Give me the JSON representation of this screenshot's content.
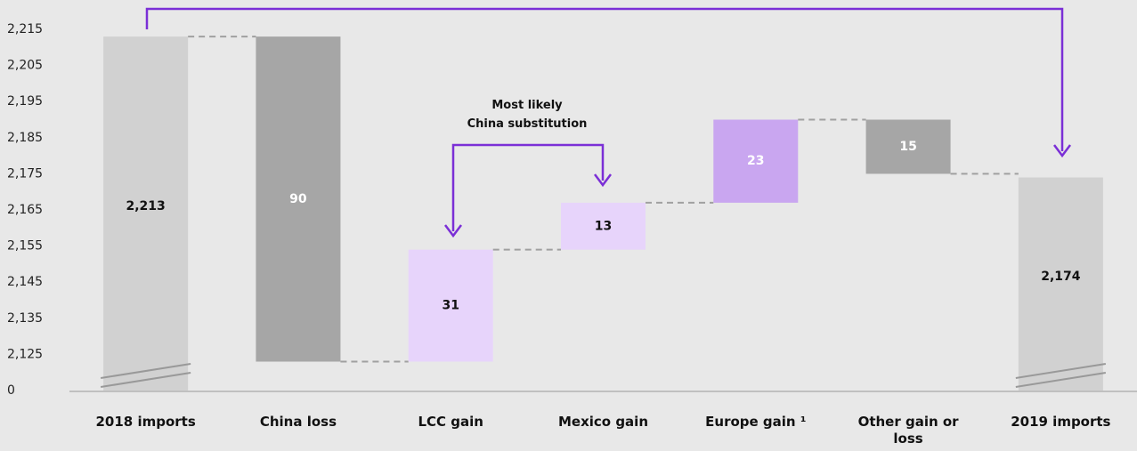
{
  "chart_data": {
    "type": "waterfall",
    "categories": [
      "2018 imports",
      "China loss",
      "LCC gain",
      "Mexico gain",
      "Europe gain ¹",
      "Other gain or loss",
      "2019 imports"
    ],
    "values": [
      2213,
      -90,
      31,
      13,
      23,
      -15,
      2174
    ],
    "value_labels": [
      "2,213",
      "90",
      "31",
      "13",
      "23",
      "15",
      "2,174"
    ],
    "colors": [
      "#d1d1d1",
      "#a6a6a6",
      "#e7d4fb",
      "#e7d4fb",
      "#c9a6f0",
      "#a6a6a6",
      "#d1d1d1"
    ],
    "label_colors": [
      "#111111",
      "#ffffff",
      "#111111",
      "#111111",
      "#ffffff",
      "#ffffff",
      "#111111"
    ],
    "annotation": [
      "Most likely",
      "China substitution"
    ],
    "ylim": [
      2115,
      2215
    ],
    "yticks": [
      0,
      {
        "value": 2125,
        "label": "2,125"
      },
      {
        "value": 2135,
        "label": "2,135"
      },
      {
        "value": 2145,
        "label": "2,145"
      },
      {
        "value": 2155,
        "label": "2,155"
      },
      {
        "value": 2165,
        "label": "2,165"
      },
      {
        "value": 2175,
        "label": "2,175"
      },
      {
        "value": 2185,
        "label": "2,185"
      },
      {
        "value": 2195,
        "label": "2,195"
      },
      {
        "value": 2205,
        "label": "2,205"
      },
      {
        "value": 2215,
        "label": "2,215"
      }
    ],
    "grid": false
  }
}
